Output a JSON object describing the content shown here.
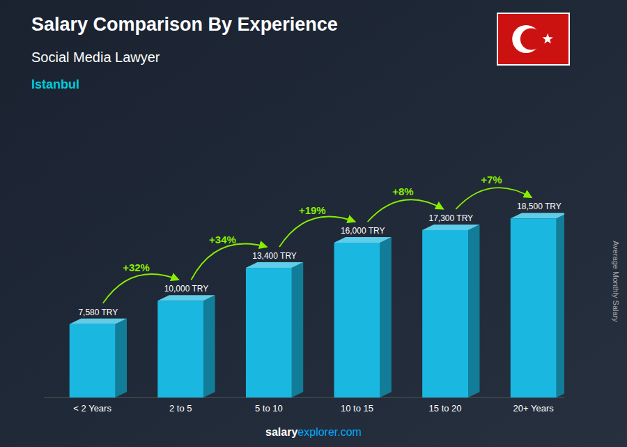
{
  "chart_data": {
    "type": "bar",
    "title": "Salary Comparison By Experience",
    "subtitle": "Social Media Lawyer",
    "y_label": "Average Monthly Salary",
    "annotations": [
      "Istanbul",
      "salary",
      "explorer.com"
    ],
    "categories": [
      "< 2 Years",
      "2 to 5",
      "5 to 10",
      "10 to 15",
      "15 to 20",
      "20+ Years"
    ],
    "values": [
      7580,
      10000,
      13400,
      16000,
      17300,
      18500
    ],
    "value_labels": [
      "7,580 TRY",
      "10,000 TRY",
      "13,400 TRY",
      "16,000 TRY",
      "17,300 TRY",
      "18,500 TRY"
    ],
    "data_labels": true,
    "changes": [
      32,
      34,
      19,
      8,
      7
    ],
    "change_labels": [
      "+32%",
      "+34%",
      "+19%",
      "+8%",
      "+7%"
    ],
    "color": "#1ab8e0",
    "ylim": [
      0,
      24000
    ],
    "tick_labels": "x",
    "grid": false
  }
}
